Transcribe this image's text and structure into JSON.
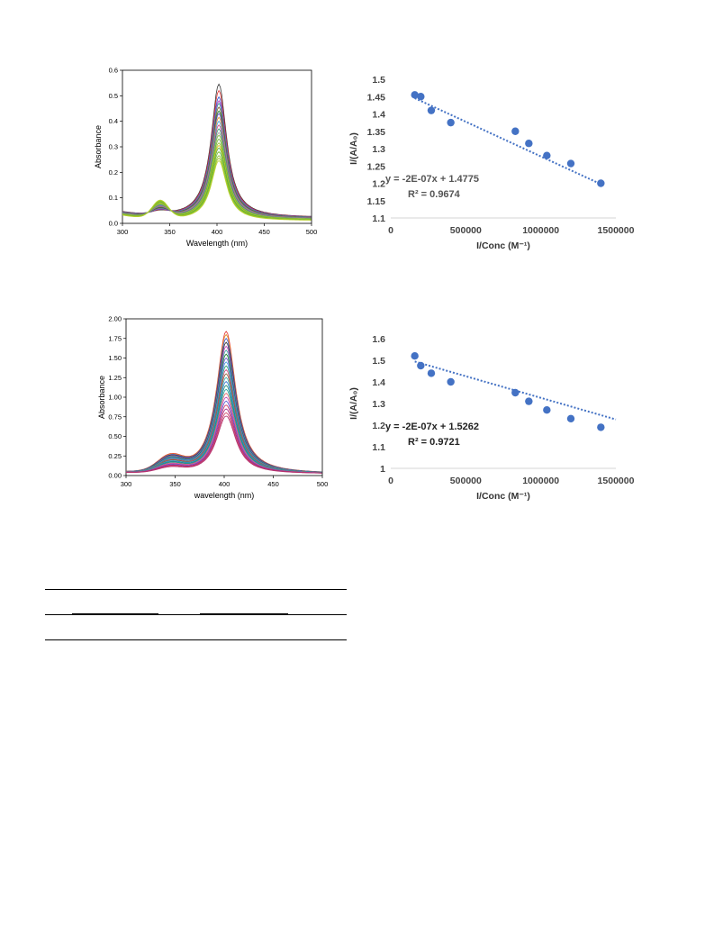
{
  "chart_data": [
    {
      "type": "line",
      "xlabel": "Wavelength (nm)",
      "ylabel": "Absorbance",
      "xlim": [
        300,
        500
      ],
      "ylim": [
        0,
        0.6
      ],
      "x_ticks": [
        "300",
        "350",
        "400",
        "450",
        "500"
      ],
      "y_ticks": [
        "0.0",
        "0.1",
        "0.2",
        "0.3",
        "0.4",
        "0.5",
        "0.6"
      ],
      "peak_wavelength": 402,
      "shoulder_wavelength": 340,
      "series_peak_values": [
        0.545,
        0.52,
        0.495,
        0.48,
        0.47,
        0.455,
        0.44,
        0.43,
        0.415,
        0.4,
        0.385,
        0.37,
        0.355,
        0.345,
        0.33,
        0.315,
        0.305,
        0.295,
        0.28,
        0.265,
        0.255,
        0.245
      ],
      "colors": [
        "#333333",
        "#e03030",
        "#3050d0",
        "#c040c0",
        "#30a0a0",
        "#8a5a2a",
        "#1a7a2a",
        "#6a4ad0",
        "#e09020",
        "#40a0e0",
        "#d04080",
        "#2a9a6a",
        "#a0a0a0",
        "#80c040",
        "#6ab030",
        "#98c030",
        "#e0c020",
        "#50b040",
        "#70b828",
        "#88c030",
        "#a0c828",
        "#b8d030"
      ]
    },
    {
      "type": "scatter",
      "xlabel": "I/Conc (M⁻¹)",
      "ylabel": "I/(A/A₀)",
      "xlim": [
        0,
        1500000
      ],
      "ylim": [
        1.1,
        1.5
      ],
      "x_ticks": [
        "0",
        "500000",
        "1000000",
        "1500000"
      ],
      "y_ticks": [
        "1.1",
        "1.15",
        "1.2",
        "1.25",
        "1.3",
        "1.35",
        "1.4",
        "1.45",
        "1.5"
      ],
      "x": [
        160000,
        200000,
        270000,
        400000,
        830000,
        920000,
        1040000,
        1200000,
        1400000
      ],
      "y": [
        1.455,
        1.45,
        1.41,
        1.375,
        1.35,
        1.315,
        1.28,
        1.257,
        1.2
      ],
      "trendline": {
        "slope": -2e-07,
        "intercept": 1.4775,
        "x_range": [
          160000,
          1400000
        ]
      },
      "equation": "y = -2E-07x + 1.4775",
      "r_squared": "R² = 0.9674",
      "marker_color": "#4472c4"
    },
    {
      "type": "line",
      "xlabel": "wavelength (nm)",
      "ylabel": "Absorbance",
      "xlim": [
        300,
        500
      ],
      "ylim": [
        0,
        2.0
      ],
      "x_ticks": [
        "300",
        "350",
        "400",
        "450",
        "500"
      ],
      "y_ticks": [
        "0.00",
        "0.25",
        "0.50",
        "0.75",
        "1.00",
        "1.25",
        "1.50",
        "1.75",
        "2.00"
      ],
      "peak_wavelength": 402,
      "shoulder_wavelength": 345,
      "series_peak_values": [
        1.84,
        1.8,
        1.75,
        1.7,
        1.65,
        1.6,
        1.55,
        1.5,
        1.45,
        1.4,
        1.35,
        1.3,
        1.25,
        1.2,
        1.15,
        1.1,
        1.05,
        1.0,
        0.95,
        0.9,
        0.85,
        0.8,
        0.76
      ],
      "colors": [
        "#e03030",
        "#e09020",
        "#3050d0",
        "#333333",
        "#c040c0",
        "#30a0a0",
        "#1a7a2a",
        "#6a4ad0",
        "#40a0e0",
        "#2a9a6a",
        "#d04080",
        "#8a5a2a",
        "#30b0b0",
        "#3070d0",
        "#209070",
        "#20a0a0",
        "#e06060",
        "#c050c0",
        "#5050d0",
        "#d03060",
        "#a02080",
        "#d04060",
        "#b03070"
      ]
    },
    {
      "type": "scatter",
      "xlabel": "I/Conc (M⁻¹)",
      "ylabel": "I/(A/A₀)",
      "xlim": [
        0,
        1500000
      ],
      "ylim": [
        1.0,
        1.6
      ],
      "x_ticks": [
        "0",
        "500000",
        "1000000",
        "1500000"
      ],
      "y_ticks": [
        "1",
        "1.1",
        "1.2",
        "1.3",
        "1.4",
        "1.5",
        "1.6"
      ],
      "x": [
        160000,
        200000,
        270000,
        400000,
        830000,
        920000,
        1040000,
        1200000,
        1400000
      ],
      "y": [
        1.52,
        1.475,
        1.44,
        1.4,
        1.35,
        1.31,
        1.27,
        1.23,
        1.19
      ],
      "trendline": {
        "slope": -2e-07,
        "intercept": 1.5262,
        "x_range": [
          160000,
          1500000
        ]
      },
      "equation": "y = -2E-07x + 1.5262",
      "r_squared": "R² = 0.9721",
      "marker_color": "#4472c4"
    }
  ]
}
